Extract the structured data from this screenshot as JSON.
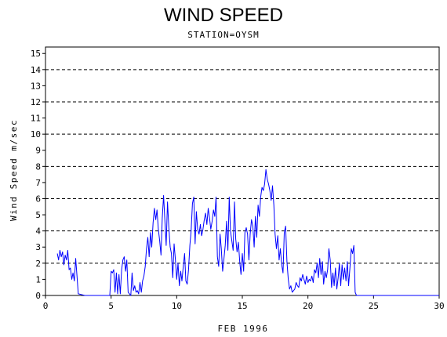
{
  "chart_data": {
    "type": "line",
    "title": "WIND SPEED",
    "subtitle": "STATION=OYSM",
    "xlabel": "FEB 1996",
    "ylabel": "Wind Speed m/sec",
    "xlim": [
      0,
      30
    ],
    "ylim": [
      0,
      15.4
    ],
    "x_ticks": [
      0,
      5,
      10,
      15,
      20,
      25,
      30
    ],
    "y_ticks": [
      0,
      1,
      2,
      3,
      4,
      5,
      6,
      7,
      8,
      9,
      10,
      11,
      12,
      13,
      14,
      15
    ],
    "grid": {
      "orientation": "horizontal",
      "style": "dashed",
      "values": [
        0,
        2,
        4,
        6,
        8,
        10,
        12,
        14
      ]
    },
    "line_color": "#0000ff",
    "series": [
      {
        "x": [
          0.9,
          1.0,
          1.1,
          1.2,
          1.3,
          1.4,
          1.5,
          1.6,
          1.7,
          1.8,
          1.9,
          2.0,
          2.1,
          2.2,
          2.3,
          2.4,
          2.5,
          3.0,
          4.0,
          4.9,
          5.0,
          5.1,
          5.2,
          5.3,
          5.4,
          5.5,
          5.6,
          5.7,
          5.8,
          5.9,
          6.0,
          6.1,
          6.2,
          6.3,
          6.4,
          6.5,
          6.6,
          6.7,
          6.8,
          6.9,
          7.0,
          7.1,
          7.2,
          7.3,
          7.4,
          7.5,
          7.6,
          7.7,
          7.8,
          7.9,
          8.0,
          8.1,
          8.2,
          8.3,
          8.4,
          8.5,
          8.6,
          8.7,
          8.8,
          8.9,
          9.0,
          9.1,
          9.2,
          9.3,
          9.4,
          9.5,
          9.6,
          9.7,
          9.8,
          9.9,
          10.0,
          10.1,
          10.2,
          10.3,
          10.4,
          10.5,
          10.6,
          10.7,
          10.8,
          10.9,
          11.0,
          11.1,
          11.2,
          11.3,
          11.4,
          11.5,
          11.6,
          11.7,
          11.8,
          11.9,
          12.0,
          12.1,
          12.2,
          12.3,
          12.4,
          12.5,
          12.6,
          12.7,
          12.8,
          12.9,
          13.0,
          13.1,
          13.2,
          13.3,
          13.4,
          13.5,
          13.6,
          13.7,
          13.8,
          13.9,
          14.0,
          14.1,
          14.2,
          14.3,
          14.4,
          14.5,
          14.6,
          14.7,
          14.8,
          14.9,
          15.0,
          15.1,
          15.2,
          15.3,
          15.4,
          15.5,
          15.6,
          15.7,
          15.8,
          15.9,
          16.0,
          16.1,
          16.2,
          16.3,
          16.4,
          16.5,
          16.6,
          16.7,
          16.8,
          16.9,
          17.0,
          17.1,
          17.2,
          17.3,
          17.4,
          17.5,
          17.6,
          17.7,
          17.8,
          17.9,
          18.0,
          18.1,
          18.2,
          18.3,
          18.4,
          18.5,
          18.6,
          18.7,
          18.8,
          18.9,
          19.0,
          19.1,
          19.2,
          19.3,
          19.4,
          19.5,
          19.6,
          19.7,
          19.8,
          19.9,
          20.0,
          20.1,
          20.2,
          20.3,
          20.4,
          20.5,
          20.6,
          20.7,
          20.8,
          20.9,
          21.0,
          21.1,
          21.2,
          21.3,
          21.4,
          21.5,
          21.6,
          21.7,
          21.8,
          21.9,
          22.0,
          22.1,
          22.2,
          22.3,
          22.4,
          22.5,
          22.6,
          22.7,
          22.8,
          22.9,
          23.0,
          23.1,
          23.2,
          23.3,
          23.4,
          23.5,
          23.6,
          23.7,
          24.0,
          25.0,
          26.0,
          27.0,
          28.0,
          29.0,
          30.0
        ],
        "y": [
          2.6,
          2.2,
          2.8,
          2.4,
          2.7,
          1.9,
          2.5,
          2.2,
          2.8,
          1.6,
          1.7,
          1.0,
          1.4,
          0.9,
          2.3,
          1.2,
          0.1,
          0.0,
          0.0,
          0.0,
          1.5,
          1.4,
          1.6,
          0.2,
          1.4,
          0.1,
          1.3,
          0.1,
          1.6,
          2.2,
          2.4,
          1.5,
          2.2,
          0.2,
          0.1,
          0.0,
          1.4,
          0.3,
          0.6,
          0.2,
          0.3,
          0.1,
          0.8,
          0.2,
          0.9,
          1.2,
          1.8,
          2.9,
          3.6,
          2.4,
          3.9,
          3.0,
          4.5,
          5.4,
          4.7,
          5.3,
          4.1,
          3.4,
          2.5,
          4.8,
          6.2,
          4.6,
          3.1,
          5.8,
          4.2,
          3.0,
          2.6,
          1.1,
          3.2,
          2.2,
          1.0,
          2.0,
          0.6,
          1.5,
          0.9,
          1.8,
          2.6,
          0.9,
          0.7,
          1.6,
          3.1,
          4.0,
          5.7,
          6.1,
          3.2,
          5.2,
          4.1,
          3.8,
          4.4,
          3.7,
          4.1,
          4.7,
          5.1,
          4.4,
          5.4,
          4.8,
          4.1,
          4.6,
          5.3,
          4.9,
          6.1,
          2.4,
          1.8,
          3.8,
          2.9,
          1.5,
          2.3,
          3.1,
          4.6,
          2.8,
          6.1,
          4.0,
          3.4,
          2.8,
          5.8,
          3.5,
          2.7,
          3.3,
          2.1,
          1.3,
          2.6,
          1.5,
          3.9,
          4.2,
          3.8,
          2.2,
          3.8,
          4.7,
          4.3,
          3.0,
          4.9,
          3.6,
          5.6,
          4.9,
          6.1,
          6.7,
          6.5,
          6.9,
          7.8,
          7.2,
          6.9,
          6.5,
          5.9,
          6.8,
          5.6,
          3.8,
          2.9,
          3.7,
          2.2,
          2.9,
          1.9,
          1.4,
          3.9,
          4.3,
          2.1,
          1.0,
          0.4,
          0.6,
          0.2,
          0.3,
          0.4,
          0.8,
          0.6,
          0.5,
          1.1,
          0.9,
          1.3,
          1.0,
          0.7,
          1.2,
          0.8,
          1.0,
          0.9,
          1.2,
          0.8,
          1.6,
          1.4,
          2.0,
          1.1,
          2.3,
          1.3,
          2.1,
          0.7,
          1.5,
          1.1,
          1.6,
          2.9,
          2.2,
          0.5,
          1.4,
          0.6,
          1.7,
          0.4,
          1.1,
          2.0,
          0.6,
          1.9,
          1.0,
          1.7,
          0.9,
          2.1,
          0.6,
          1.7,
          2.9,
          2.6,
          3.1,
          0.2,
          0.0,
          0.0,
          0.0,
          0.0,
          0.0,
          0.0,
          0.0,
          0.0
        ]
      }
    ]
  }
}
